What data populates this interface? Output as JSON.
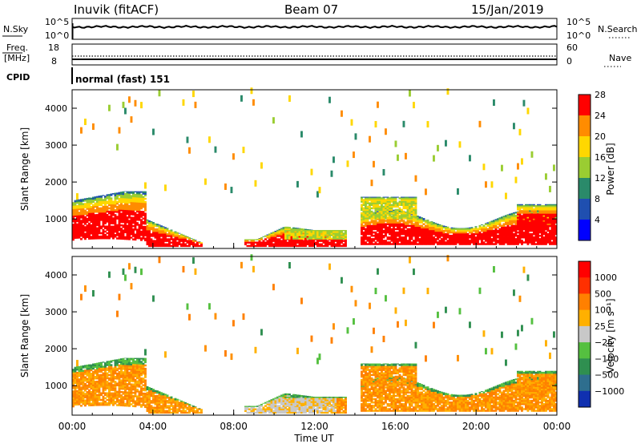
{
  "header": {
    "station": "Inuvik (fitACF)",
    "beam": "Beam 07",
    "date": "15/Jan/2019"
  },
  "noise_panel": {
    "left_label": "N.Sky",
    "right_label": "N.Search",
    "left_ticks": [
      "10^5",
      "10^0"
    ],
    "right_ticks": [
      "10^5",
      "10^0"
    ]
  },
  "freq_panel": {
    "left_label_1": "Freq.",
    "left_label_2": "[MHz]",
    "right_label": "Nave",
    "left_ticks": [
      "18",
      "8"
    ],
    "right_ticks": [
      "60",
      "0"
    ]
  },
  "cpid": {
    "label": "CPID",
    "value": "normal (fast) 151"
  },
  "chart_data": [
    {
      "type": "heatmap",
      "name": "power",
      "ylabel": "Slant Range [km]",
      "y_ticks": [
        "1000",
        "2000",
        "3000",
        "4000"
      ],
      "ylim": [
        200,
        4500
      ],
      "colorbar_label": "Power [dB]",
      "colorbar_ticks": [
        "4",
        "8",
        "12",
        "16",
        "20",
        "24",
        "28"
      ],
      "colorbar_colors": [
        "#0000ff",
        "#1f4fb0",
        "#2a8a6a",
        "#9acd32",
        "#ffd700",
        "#ff8c00",
        "#ff0000"
      ],
      "xlim": [
        0,
        24
      ]
    },
    {
      "type": "heatmap",
      "name": "velocity",
      "ylabel": "Slant Range [km]",
      "y_ticks": [
        "1000",
        "2000",
        "3000",
        "4000"
      ],
      "ylim": [
        200,
        4500
      ],
      "colorbar_label": "Velocity [m s⁻¹]",
      "colorbar_ticks": [
        "1000",
        "500",
        "100",
        "25",
        "−25",
        "−100",
        "−500",
        "−1000"
      ],
      "colorbar_colors": [
        "#1030b0",
        "#2e6e8e",
        "#2f8f50",
        "#55c040",
        "#c8c8c8",
        "#ffb000",
        "#ff8000",
        "#ff3000",
        "#ff0000"
      ],
      "xlim": [
        0,
        24
      ]
    }
  ],
  "x_axis": {
    "ticks": [
      "00:00",
      "04:00",
      "08:00",
      "12:00",
      "16:00",
      "20:00",
      "00:00"
    ],
    "label": "Time UT"
  }
}
